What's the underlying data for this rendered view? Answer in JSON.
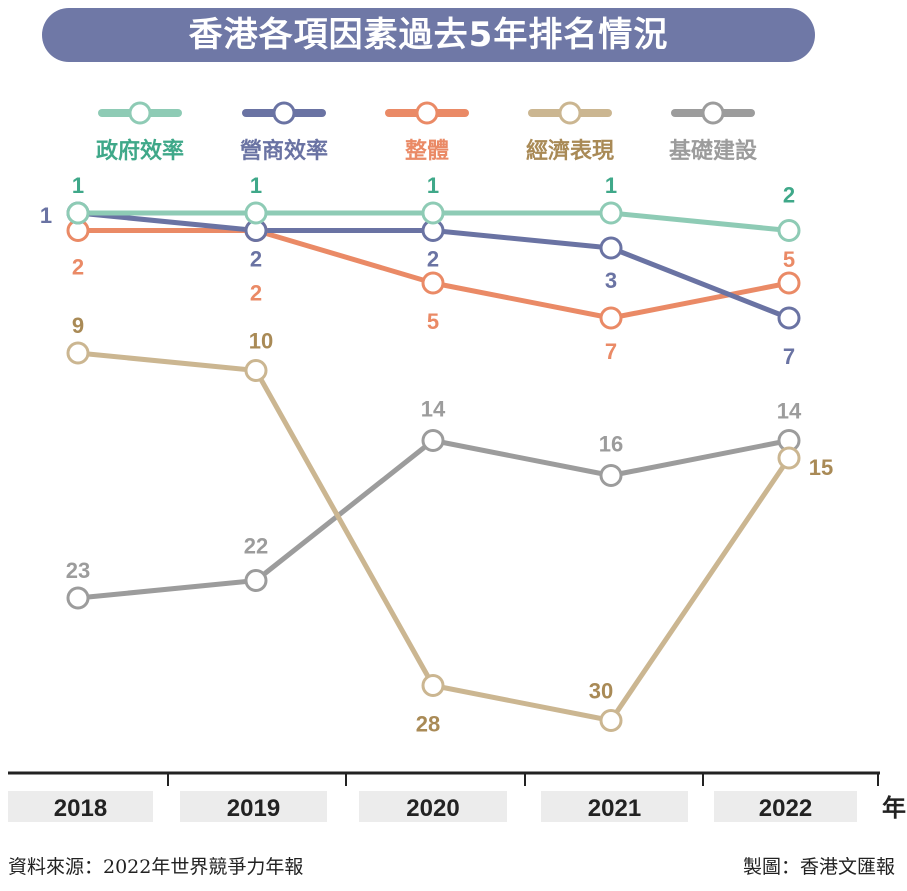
{
  "chart_data": {
    "type": "line",
    "title": "香港各項因素過去5年排名情況",
    "categories": [
      "2018",
      "2019",
      "2020",
      "2021",
      "2022"
    ],
    "xlabel": "年",
    "ylabel": "",
    "y_inverted": true,
    "ylim": [
      1,
      30
    ],
    "grid": false,
    "legend_position": "top",
    "series": [
      {
        "name": "政府效率",
        "values": [
          1,
          1,
          1,
          1,
          2
        ],
        "line_color": "#8ecbb5",
        "label_color": "#3fa889"
      },
      {
        "name": "營商效率",
        "values": [
          1,
          2,
          2,
          3,
          7
        ],
        "line_color": "#6a73a3",
        "label_color": "#6a73a3"
      },
      {
        "name": "整體",
        "values": [
          2,
          2,
          5,
          7,
          5
        ],
        "line_color": "#ea8a66",
        "label_color": "#ea8a66"
      },
      {
        "name": "經濟表現",
        "values": [
          9,
          10,
          28,
          30,
          15
        ],
        "line_color": "#cbb691",
        "label_color": "#a98a56"
      },
      {
        "name": "基礎建設",
        "values": [
          23,
          22,
          14,
          16,
          14
        ],
        "line_color": "#9c9c9c",
        "label_color": "#9c9c9c"
      }
    ]
  },
  "footer": {
    "source": "資料來源：2022年世界競爭力年報",
    "credit": "製圖：香港文匯報"
  }
}
